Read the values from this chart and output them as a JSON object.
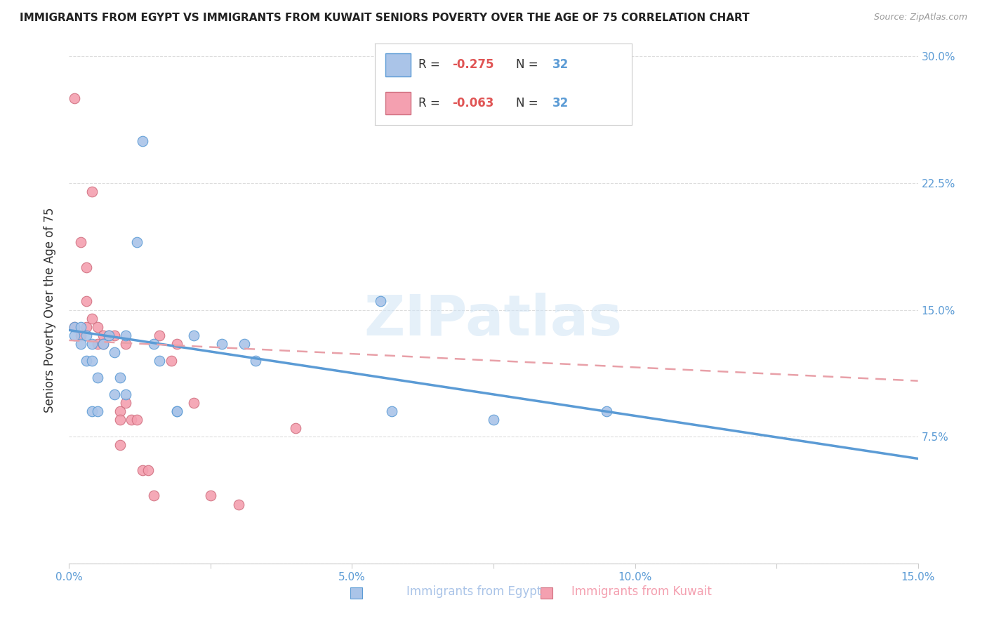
{
  "title": "IMMIGRANTS FROM EGYPT VS IMMIGRANTS FROM KUWAIT SENIORS POVERTY OVER THE AGE OF 75 CORRELATION CHART",
  "source": "Source: ZipAtlas.com",
  "ylabel": "Seniors Poverty Over the Age of 75",
  "xlim": [
    0.0,
    0.15
  ],
  "ylim": [
    0.0,
    0.3
  ],
  "xticks": [
    0.0,
    0.025,
    0.05,
    0.075,
    0.1,
    0.125,
    0.15
  ],
  "xtick_labels": [
    "0.0%",
    "",
    "5.0%",
    "",
    "10.0%",
    "",
    "15.0%"
  ],
  "yticks": [
    0.0,
    0.075,
    0.15,
    0.225,
    0.3
  ],
  "ytick_labels_right": [
    "",
    "7.5%",
    "15.0%",
    "22.5%",
    "30.0%"
  ],
  "grid_color": "#dddddd",
  "background_color": "#ffffff",
  "egypt_color": "#aac4e8",
  "kuwait_color": "#f4a0b0",
  "egypt_line_color": "#5b9bd5",
  "kuwait_line_color": "#e8a0a8",
  "legend_egypt_R": "-0.275",
  "legend_egypt_N": "32",
  "legend_kuwait_R": "-0.063",
  "legend_kuwait_N": "32",
  "egypt_scatter_x": [
    0.001,
    0.001,
    0.002,
    0.002,
    0.003,
    0.003,
    0.004,
    0.004,
    0.004,
    0.005,
    0.005,
    0.006,
    0.007,
    0.008,
    0.008,
    0.009,
    0.01,
    0.01,
    0.012,
    0.013,
    0.015,
    0.016,
    0.019,
    0.019,
    0.022,
    0.027,
    0.031,
    0.033,
    0.055,
    0.057,
    0.075,
    0.095
  ],
  "egypt_scatter_y": [
    0.14,
    0.135,
    0.14,
    0.13,
    0.135,
    0.12,
    0.13,
    0.12,
    0.09,
    0.11,
    0.09,
    0.13,
    0.135,
    0.125,
    0.1,
    0.11,
    0.135,
    0.1,
    0.19,
    0.25,
    0.13,
    0.12,
    0.09,
    0.09,
    0.135,
    0.13,
    0.13,
    0.12,
    0.155,
    0.09,
    0.085,
    0.09
  ],
  "kuwait_scatter_x": [
    0.001,
    0.001,
    0.002,
    0.002,
    0.003,
    0.003,
    0.003,
    0.004,
    0.004,
    0.005,
    0.005,
    0.006,
    0.006,
    0.007,
    0.008,
    0.009,
    0.009,
    0.009,
    0.01,
    0.01,
    0.011,
    0.012,
    0.013,
    0.014,
    0.015,
    0.016,
    0.018,
    0.019,
    0.022,
    0.025,
    0.03,
    0.04
  ],
  "kuwait_scatter_y": [
    0.14,
    0.275,
    0.135,
    0.19,
    0.175,
    0.155,
    0.14,
    0.22,
    0.145,
    0.14,
    0.13,
    0.135,
    0.13,
    0.135,
    0.135,
    0.09,
    0.085,
    0.07,
    0.13,
    0.095,
    0.085,
    0.085,
    0.055,
    0.055,
    0.04,
    0.135,
    0.12,
    0.13,
    0.095,
    0.04,
    0.035,
    0.08
  ],
  "egypt_line_y_start": 0.138,
  "egypt_line_y_end": 0.062,
  "kuwait_line_y_start": 0.132,
  "kuwait_line_y_end": 0.108,
  "watermark": "ZIPatlas",
  "marker_size": 110,
  "title_fontsize": 11,
  "axis_label_fontsize": 12,
  "tick_fontsize": 11,
  "legend_fontsize": 13,
  "tick_color": "#5b9bd5"
}
